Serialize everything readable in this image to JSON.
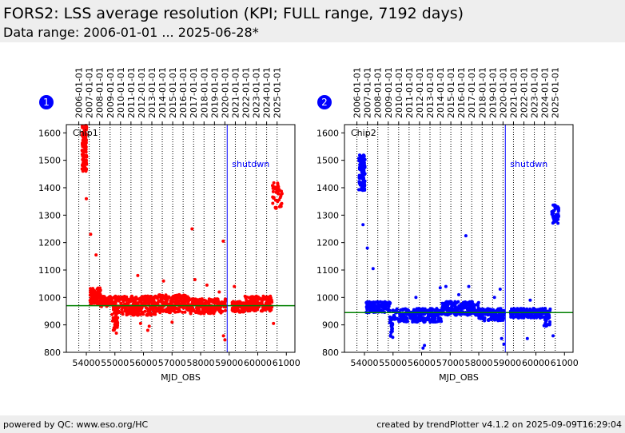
{
  "header": {
    "title": "FORS2: LSS average resolution (KPI; FULL range, 7192 days)",
    "subtitle": "Data range: 2006-01-01 ... 2025-06-28*"
  },
  "footer": {
    "left": "powered by QC: www.eso.org/HC",
    "right": "created by trendPlotter v4.1.2 on 2025-09-09T16:29:04"
  },
  "colors": {
    "chip1": "#ff0000",
    "chip2": "#0000ff",
    "reference": "#008000",
    "shutdown": "#0000ff",
    "badge": "#0000ff"
  },
  "chart_data": [
    {
      "type": "scatter",
      "badge": "1",
      "label": "Chip1",
      "color": "#ff0000",
      "xlabel": "MJD_OBS",
      "ylabel": "",
      "xlim": [
        53300,
        61300
      ],
      "ylim": [
        800,
        1630
      ],
      "xticks": [
        54000,
        55000,
        56000,
        57000,
        58000,
        59000,
        60000,
        61000
      ],
      "yticks": [
        800,
        900,
        1000,
        1100,
        1200,
        1300,
        1400,
        1500,
        1600
      ],
      "top_ticks": [
        "2006-01-01",
        "2007-01-01",
        "2008-01-01",
        "2009-01-01",
        "2010-01-01",
        "2011-01-01",
        "2012-01-01",
        "2013-01-01",
        "2014-01-01",
        "2015-01-01",
        "2016-01-01",
        "2017-01-01",
        "2018-01-01",
        "2019-01-01",
        "2020-01-01",
        "2021-01-01",
        "2022-01-01",
        "2023-01-01",
        "2024-01-01",
        "2025-01-01"
      ],
      "top_ticks_mjd": [
        53736,
        54101,
        54466,
        54832,
        55197,
        55562,
        55927,
        56293,
        56658,
        57023,
        57388,
        57754,
        58119,
        58484,
        58849,
        59215,
        59580,
        59945,
        60310,
        60676
      ],
      "reference_y": 970,
      "shutdown_x": 58930,
      "shutdown_label": "shutdwn",
      "segments": [
        {
          "x": [
            53850,
            54010
          ],
          "y": [
            1460,
            1630
          ],
          "n": 120
        },
        {
          "x": [
            54130,
            54500
          ],
          "y": [
            975,
            1035
          ],
          "n": 90
        },
        {
          "x": [
            54500,
            54900
          ],
          "y": [
            965,
            1005
          ],
          "n": 70
        },
        {
          "x": [
            54900,
            55100
          ],
          "y": [
            880,
            1010
          ],
          "n": 60
        },
        {
          "x": [
            55100,
            56500
          ],
          "y": [
            935,
            1005
          ],
          "n": 260
        },
        {
          "x": [
            56500,
            57600
          ],
          "y": [
            945,
            1010
          ],
          "n": 220
        },
        {
          "x": [
            57600,
            58900
          ],
          "y": [
            940,
            995
          ],
          "n": 200
        },
        {
          "x": [
            59100,
            59550
          ],
          "y": [
            945,
            985
          ],
          "n": 80
        },
        {
          "x": [
            59550,
            60500
          ],
          "y": [
            950,
            1005
          ],
          "n": 180
        },
        {
          "x": [
            60500,
            60850
          ],
          "y": [
            1320,
            1420
          ],
          "n": 45
        }
      ],
      "outliers": [
        [
          54000,
          1360
        ],
        [
          54150,
          1230
        ],
        [
          54340,
          1155
        ],
        [
          55050,
          870
        ],
        [
          55800,
          1080
        ],
        [
          55900,
          905
        ],
        [
          56150,
          880
        ],
        [
          56200,
          895
        ],
        [
          56700,
          1060
        ],
        [
          57000,
          910
        ],
        [
          57700,
          1250
        ],
        [
          57800,
          1065
        ],
        [
          58220,
          1045
        ],
        [
          58650,
          1020
        ],
        [
          58790,
          1205
        ],
        [
          58800,
          860
        ],
        [
          58850,
          845
        ],
        [
          59180,
          1040
        ],
        [
          60550,
          905
        ]
      ]
    },
    {
      "type": "scatter",
      "badge": "2",
      "label": "Chip2",
      "color": "#0000ff",
      "xlabel": "MJD_OBS",
      "ylabel": "",
      "xlim": [
        53300,
        61300
      ],
      "ylim": [
        800,
        1630
      ],
      "xticks": [
        54000,
        55000,
        56000,
        57000,
        58000,
        59000,
        60000,
        61000
      ],
      "yticks": [
        800,
        900,
        1000,
        1100,
        1200,
        1300,
        1400,
        1500,
        1600
      ],
      "top_ticks": [
        "2006-01-01",
        "2007-01-01",
        "2008-01-01",
        "2009-01-01",
        "2010-01-01",
        "2011-01-01",
        "2012-01-01",
        "2013-01-01",
        "2014-01-01",
        "2015-01-01",
        "2016-01-01",
        "2017-01-01",
        "2018-01-01",
        "2019-01-01",
        "2020-01-01",
        "2021-01-01",
        "2022-01-01",
        "2023-01-01",
        "2024-01-01",
        "2025-01-01"
      ],
      "top_ticks_mjd": [
        53736,
        54101,
        54466,
        54832,
        55197,
        55562,
        55927,
        56293,
        56658,
        57023,
        57388,
        57754,
        58119,
        58484,
        58849,
        59215,
        59580,
        59945,
        60310,
        60676
      ],
      "reference_y": 945,
      "shutdown_x": 58930,
      "shutdown_label": "shutdwn",
      "segments": [
        {
          "x": [
            53800,
            54020
          ],
          "y": [
            1390,
            1520
          ],
          "n": 110
        },
        {
          "x": [
            54050,
            54900
          ],
          "y": [
            945,
            985
          ],
          "n": 120
        },
        {
          "x": [
            54880,
            55000
          ],
          "y": [
            850,
            930
          ],
          "n": 25
        },
        {
          "x": [
            55000,
            56700
          ],
          "y": [
            910,
            960
          ],
          "n": 260
        },
        {
          "x": [
            56700,
            58000
          ],
          "y": [
            935,
            985
          ],
          "n": 220
        },
        {
          "x": [
            58000,
            58900
          ],
          "y": [
            915,
            960
          ],
          "n": 150
        },
        {
          "x": [
            59100,
            60250
          ],
          "y": [
            925,
            960
          ],
          "n": 200
        },
        {
          "x": [
            60250,
            60500
          ],
          "y": [
            895,
            960
          ],
          "n": 45
        },
        {
          "x": [
            60550,
            60800
          ],
          "y": [
            1270,
            1340
          ],
          "n": 45
        }
      ],
      "outliers": [
        [
          53950,
          1265
        ],
        [
          54100,
          1180
        ],
        [
          54300,
          1105
        ],
        [
          55800,
          1000
        ],
        [
          56050,
          815
        ],
        [
          56100,
          825
        ],
        [
          56650,
          1035
        ],
        [
          56850,
          1040
        ],
        [
          57300,
          1010
        ],
        [
          57550,
          1225
        ],
        [
          57650,
          1040
        ],
        [
          58550,
          1000
        ],
        [
          58750,
          1030
        ],
        [
          58800,
          850
        ],
        [
          58880,
          830
        ],
        [
          59800,
          990
        ],
        [
          59700,
          850
        ],
        [
          60600,
          860
        ]
      ]
    }
  ]
}
